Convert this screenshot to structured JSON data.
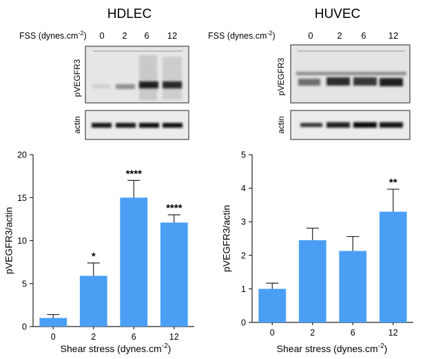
{
  "figure": {
    "panels": [
      {
        "title": "HDLEC",
        "fss_label": "FSS (dynes.cm",
        "fss_unit_sup": "-2",
        "fss_label_end": ")",
        "lanes": [
          "0",
          "2",
          "6",
          "12"
        ],
        "blots": [
          {
            "label": "pVEGFR3",
            "bands": [
              0.1,
              0.4,
              0.9,
              0.85
            ]
          },
          {
            "label": "actin",
            "bands": [
              0.95,
              0.95,
              1.0,
              0.98
            ]
          }
        ]
      },
      {
        "title": "HUVEC",
        "fss_label": "FSS (dynes.cm",
        "fss_unit_sup": "-2",
        "fss_label_end": ")",
        "lanes": [
          "0",
          "2",
          "6",
          "12"
        ],
        "blots": [
          {
            "label": "pVEGFR3",
            "bands": [
              0.55,
              0.85,
              0.8,
              0.9
            ]
          },
          {
            "label": "actin",
            "bands": [
              0.8,
              0.9,
              1.0,
              0.95
            ]
          }
        ]
      }
    ]
  },
  "chart_data": [
    {
      "type": "bar",
      "panel": "HDLEC",
      "categories": [
        "0",
        "2",
        "6",
        "12"
      ],
      "values": [
        1.0,
        5.9,
        15.0,
        12.1
      ],
      "errors": [
        0.4,
        1.5,
        2.0,
        0.9
      ],
      "significance": [
        "",
        "*",
        "****",
        "****"
      ],
      "ylim": [
        0,
        20
      ],
      "yticks": [
        "0",
        "5",
        "10",
        "15",
        "20"
      ],
      "ylabel": "pVEGFR3/actin",
      "xlabel": "Shear stress (dynes.cm",
      "xlabel_sup": "-2",
      "xlabel_end": ")",
      "color": "#4a9ff5"
    },
    {
      "type": "bar",
      "panel": "HUVEC",
      "categories": [
        "0",
        "2",
        "6",
        "12"
      ],
      "values": [
        1.0,
        2.45,
        2.13,
        3.3
      ],
      "errors": [
        0.17,
        0.36,
        0.43,
        0.67
      ],
      "significance": [
        "",
        "",
        "",
        "**"
      ],
      "ylim": [
        0,
        5
      ],
      "yticks": [
        "0",
        "1",
        "2",
        "3",
        "4",
        "5"
      ],
      "ylabel": "pVEGFR3/actin",
      "xlabel": "Shear stress (dynes.cm",
      "xlabel_sup": "-2",
      "xlabel_end": ")",
      "color": "#4a9ff5"
    }
  ]
}
